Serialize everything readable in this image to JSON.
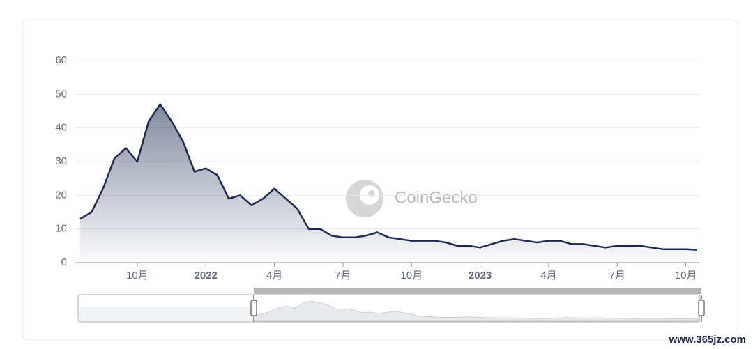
{
  "chart_data": {
    "type": "area",
    "watermark": "CoinGecko",
    "site_watermark": "www.365jz.com",
    "categories": [
      null,
      null,
      null,
      null,
      null,
      "10月",
      null,
      null,
      null,
      null,
      null,
      "2022",
      null,
      null,
      null,
      null,
      null,
      "4月",
      null,
      null,
      null,
      null,
      null,
      "7月",
      null,
      null,
      null,
      null,
      null,
      "10月",
      null,
      null,
      null,
      null,
      null,
      "2023",
      null,
      null,
      null,
      null,
      null,
      "4月",
      null,
      null,
      null,
      null,
      null,
      "7月",
      null,
      null,
      null,
      null,
      null,
      "10月",
      null
    ],
    "values": [
      13,
      15,
      22,
      31,
      34,
      30,
      42,
      47,
      42,
      36,
      27,
      28,
      26,
      19,
      20,
      17,
      19,
      22,
      19,
      16,
      10,
      10,
      8,
      7.5,
      7.5,
      8,
      9,
      7.5,
      7,
      6.5,
      6.5,
      6.5,
      6,
      5,
      5,
      4.5,
      5.5,
      6.5,
      7,
      6.5,
      6,
      6.5,
      6.5,
      5.5,
      5.5,
      5,
      4.5,
      5,
      5,
      5,
      4.5,
      4,
      4,
      4,
      3.8
    ],
    "color": "#1c2a52",
    "ylim": [
      0,
      60
    ],
    "yticks": [
      0,
      10,
      20,
      30,
      40,
      50,
      60
    ],
    "grid": true
  }
}
